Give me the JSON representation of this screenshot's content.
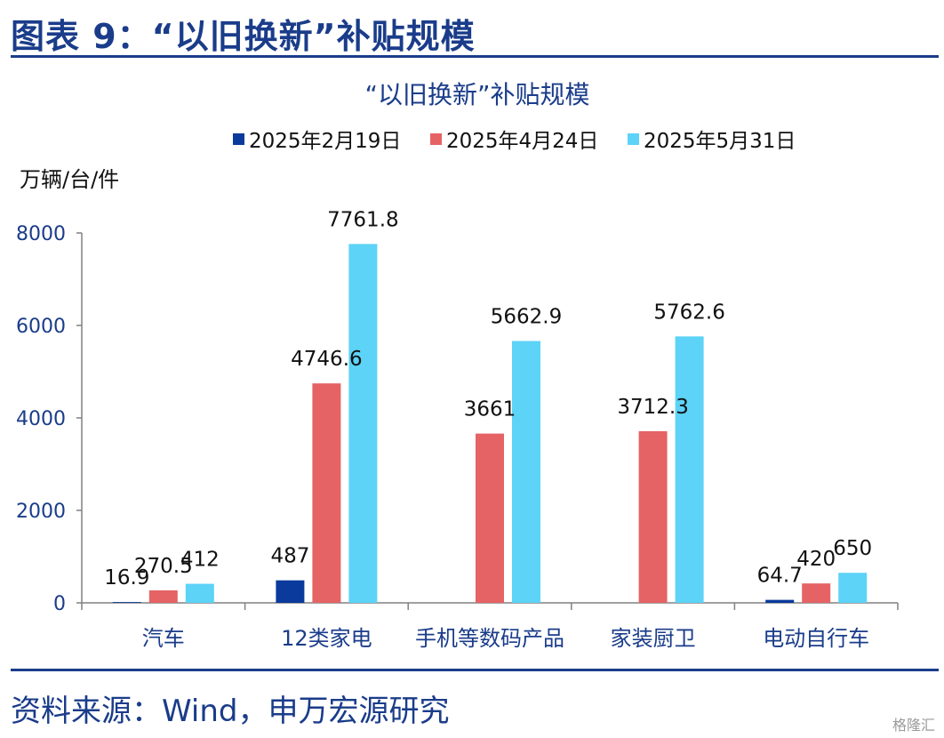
{
  "figure_title": "图表 9：“以旧换新”补贴规模",
  "source": "资料来源：Wind，申万宏源研究",
  "watermark": "格隆汇",
  "colors": {
    "series": [
      "#0a3a9c",
      "#e56365",
      "#5cd3f7"
    ],
    "axis_text": "#1a3c8a",
    "rule": "#1a3c8a"
  },
  "chart_data": {
    "type": "bar",
    "title": "“以旧换新”补贴规模",
    "ylabel": "万辆/台/件",
    "xlabel": "",
    "ylim": [
      0,
      8000
    ],
    "yticks": [
      0,
      2000,
      4000,
      6000,
      8000
    ],
    "grid": false,
    "legend_position": "top",
    "categories": [
      "汽车",
      "12类家电",
      "手机等数码产品",
      "家装厨卫",
      "电动自行车"
    ],
    "series": [
      {
        "name": "2025年2月19日",
        "values": [
          16.9,
          487,
          null,
          null,
          64.7
        ]
      },
      {
        "name": "2025年4月24日",
        "values": [
          270.5,
          4746.6,
          3661,
          3712.3,
          420
        ]
      },
      {
        "name": "2025年5月31日",
        "values": [
          412,
          7761.8,
          5662.9,
          5762.6,
          650
        ]
      }
    ]
  }
}
